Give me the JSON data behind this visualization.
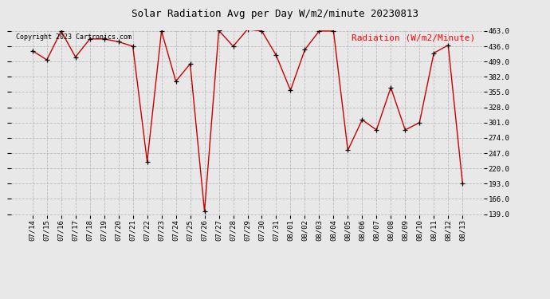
{
  "title": "Solar Radiation Avg per Day W/m2/minute 20230813",
  "copyright": "Copyright 2023 Cartronics.com",
  "legend_label": "Radiation (W/m2/Minute)",
  "dates": [
    "07/14",
    "07/15",
    "07/16",
    "07/17",
    "07/18",
    "07/19",
    "07/20",
    "07/21",
    "07/22",
    "07/23",
    "07/24",
    "07/25",
    "07/26",
    "07/27",
    "07/28",
    "07/29",
    "07/30",
    "07/31",
    "08/01",
    "08/02",
    "08/03",
    "08/04",
    "08/05",
    "08/06",
    "08/07",
    "08/08",
    "08/09",
    "08/10",
    "08/11",
    "08/12",
    "08/13"
  ],
  "values": [
    428,
    412,
    463,
    417,
    449,
    449,
    444,
    436,
    232,
    463,
    374,
    405,
    144,
    464,
    436,
    466,
    463,
    420,
    358,
    430,
    463,
    463,
    252,
    306,
    288,
    363,
    288,
    301,
    424,
    438,
    194
  ],
  "ylim_min": 139.0,
  "ylim_max": 463.0,
  "yticks": [
    139.0,
    166.0,
    193.0,
    220.0,
    247.0,
    274.0,
    301.0,
    328.0,
    355.0,
    382.0,
    409.0,
    436.0,
    463.0
  ],
  "line_color": "#cc0000",
  "marker_color": "black",
  "grid_color": "#bbbbbb",
  "bg_color": "#e8e8e8",
  "title_fontsize": 9,
  "copyright_fontsize": 6,
  "legend_fontsize": 8,
  "tick_fontsize": 6.5
}
